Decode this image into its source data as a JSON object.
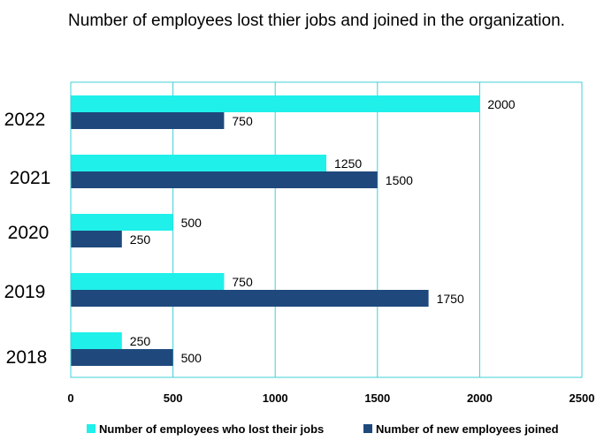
{
  "chart_data": {
    "type": "bar",
    "orientation": "horizontal",
    "title": "Number of employees lost thier jobs and joined in the organization.",
    "categories": [
      "2022",
      "2021",
      "2020",
      "2019",
      "2018"
    ],
    "series": [
      {
        "name": "Number of employees who lost their jobs",
        "color": "#1ff0ea",
        "values": [
          2000,
          1250,
          500,
          750,
          250
        ]
      },
      {
        "name": "Number of new employees joined",
        "color": "#1f497d",
        "values": [
          750,
          1500,
          250,
          1750,
          500
        ]
      }
    ],
    "xlim": [
      0,
      2500
    ],
    "xticks": [
      0,
      500,
      1000,
      1500,
      2000,
      2500
    ],
    "grid": true,
    "gridColor": "#3fd0d6",
    "legend": "bottom"
  }
}
